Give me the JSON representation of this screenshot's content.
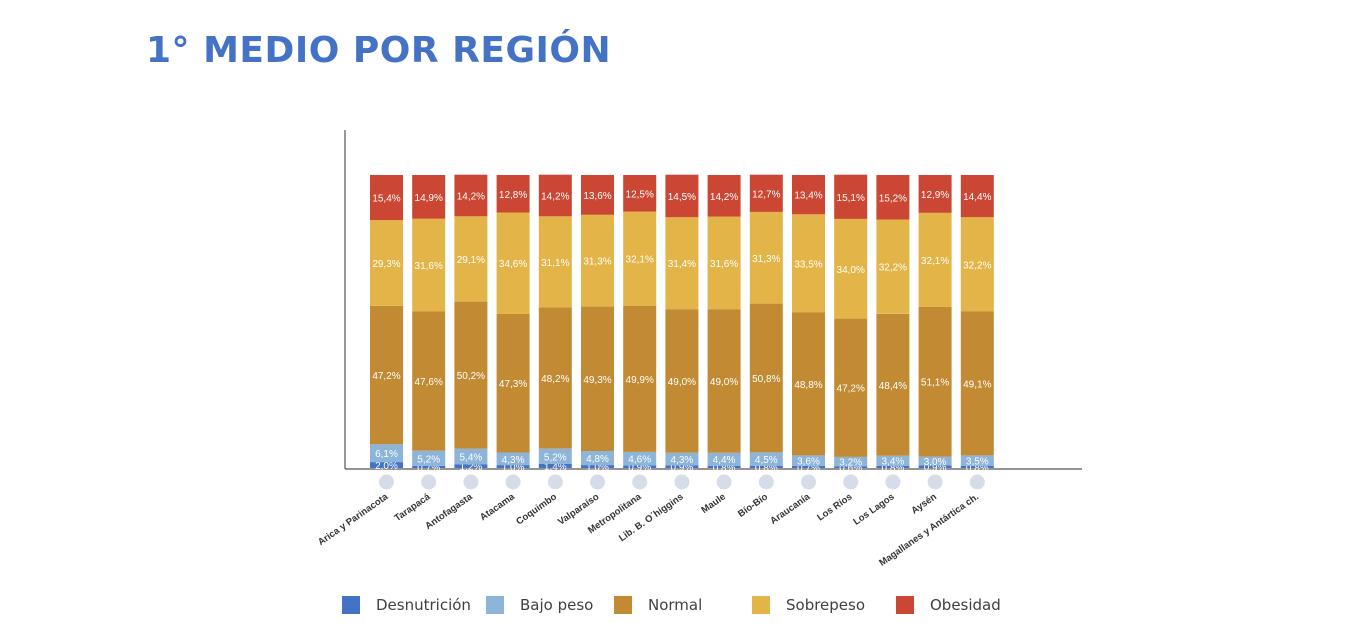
{
  "page": {
    "title": "1° MEDIO POR REGIÓN"
  },
  "chart_data": {
    "type": "bar",
    "stacked": true,
    "title": "",
    "xlabel": "",
    "ylabel": "",
    "ylim": [
      0,
      100
    ],
    "categories": [
      "Arica y Parinacota",
      "Tarapacá",
      "Antofagasta",
      "Atacama",
      "Coquimbo",
      "Valparaíso",
      "Metropolitana",
      "Lib. B. O´higgins",
      "Maule",
      "Bío-Bío",
      "Araucanía",
      "Los Ríos",
      "Los Lagos",
      "Aysén",
      "Magallanes y Antártica ch."
    ],
    "series": [
      {
        "name": "Desnutrición",
        "color": "#4472c4",
        "values": [
          2.0,
          0.7,
          1.2,
          1.0,
          1.4,
          1.0,
          0.9,
          0.9,
          0.8,
          0.8,
          0.7,
          0.6,
          0.8,
          0.9,
          0.8
        ],
        "labels": [
          "2,0%",
          "0,7%",
          "1,2%",
          "1,0%",
          "1,4%",
          "1,0%",
          "0,9%",
          "0,9%",
          "0,8%",
          "0,8%",
          "0,7%",
          "0,6%",
          "0,8%",
          "0,9%",
          "0,8%"
        ]
      },
      {
        "name": "Bajo peso",
        "color": "#8db4d9",
        "values": [
          6.1,
          5.2,
          5.4,
          4.3,
          5.2,
          4.8,
          4.6,
          4.3,
          4.4,
          4.5,
          3.6,
          3.2,
          3.4,
          3.0,
          3.5
        ],
        "labels": [
          "6,1%",
          "5,2%",
          "5,4%",
          "4,3%",
          "5,2%",
          "4,8%",
          "4,6%",
          "4,3%",
          "4,4%",
          "4,5%",
          "3,6%",
          "3,2%",
          "3,4%",
          "3,0%",
          "3,5%"
        ]
      },
      {
        "name": "Normal",
        "color": "#c28a32",
        "values": [
          47.2,
          47.6,
          50.2,
          47.3,
          48.2,
          49.3,
          49.9,
          49.0,
          49.0,
          50.8,
          48.8,
          47.2,
          48.4,
          51.1,
          49.1
        ],
        "labels": [
          "47,2%",
          "47,6%",
          "50,2%",
          "47,3%",
          "48,2%",
          "49,3%",
          "49,9%",
          "49,0%",
          "49,0%",
          "50,8%",
          "48,8%",
          "47,2%",
          "48,4%",
          "51,1%",
          "49,1%"
        ]
      },
      {
        "name": "Sobrepeso",
        "color": "#e3b447",
        "values": [
          29.3,
          31.6,
          29.1,
          34.6,
          31.1,
          31.3,
          32.1,
          31.4,
          31.6,
          31.3,
          33.5,
          34.0,
          32.2,
          32.1,
          32.2
        ],
        "labels": [
          "29,3%",
          "31,6%",
          "29,1%",
          "34,6%",
          "31,1%",
          "31,3%",
          "32,1%",
          "31,4%",
          "31,6%",
          "31,3%",
          "33,5%",
          "34,0%",
          "32,2%",
          "32,1%",
          "32,2%"
        ]
      },
      {
        "name": "Obesidad",
        "color": "#cc4634",
        "values": [
          15.4,
          14.9,
          14.2,
          12.8,
          14.2,
          13.6,
          12.5,
          14.5,
          14.2,
          12.7,
          13.4,
          15.1,
          15.2,
          12.9,
          14.4
        ],
        "labels": [
          "15,4%",
          "14,9%",
          "14,2%",
          "12,8%",
          "14,2%",
          "13,6%",
          "12,5%",
          "14,5%",
          "14,2%",
          "12,7%",
          "13,4%",
          "15,1%",
          "15,2%",
          "12,9%",
          "14,4%"
        ]
      }
    ],
    "legend_position": "bottom",
    "grid": false,
    "marker_color": "#d6dde8"
  }
}
